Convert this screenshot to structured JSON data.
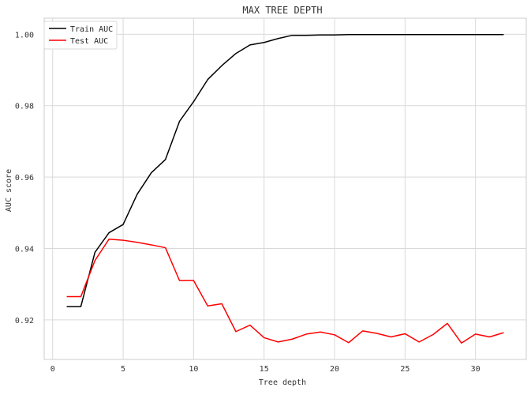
{
  "chart_data": {
    "type": "line",
    "title": "MAX TREE DEPTH",
    "xlabel": "Tree depth",
    "ylabel": "AUC score",
    "xlim": [
      -0.6,
      33.6
    ],
    "ylim": [
      0.9089,
      1.0045
    ],
    "x_ticks": [
      0,
      5,
      10,
      15,
      20,
      25,
      30
    ],
    "y_ticks": [
      0.92,
      0.94,
      0.96,
      0.98,
      1.0
    ],
    "y_tick_labels": [
      "0.92",
      "0.94",
      "0.96",
      "0.98",
      "1.00"
    ],
    "grid": true,
    "legend_position": "top-left",
    "x": [
      1,
      2,
      3,
      4,
      5,
      6,
      7,
      8,
      9,
      10,
      11,
      12,
      13,
      14,
      15,
      16,
      17,
      18,
      19,
      20,
      21,
      22,
      23,
      24,
      25,
      26,
      27,
      28,
      29,
      30,
      31,
      32
    ],
    "series": [
      {
        "name": "Train AUC",
        "color": "#000000",
        "values": [
          0.9237,
          0.9237,
          0.9389,
          0.9444,
          0.9467,
          0.9552,
          0.9612,
          0.9649,
          0.9756,
          0.9811,
          0.9873,
          0.9912,
          0.9946,
          0.997,
          0.9977,
          0.9988,
          0.9997,
          0.9997,
          0.9998,
          0.9998,
          0.9999,
          0.9999,
          0.9999,
          0.9999,
          0.9999,
          0.9999,
          0.9999,
          0.9999,
          0.9999,
          0.9999,
          0.9999,
          0.9999
        ]
      },
      {
        "name": "Test AUC",
        "color": "#ff0000",
        "values": [
          0.9265,
          0.9265,
          0.9366,
          0.9426,
          0.9423,
          0.9417,
          0.941,
          0.9402,
          0.931,
          0.931,
          0.9239,
          0.9245,
          0.9167,
          0.9185,
          0.915,
          0.9138,
          0.9146,
          0.916,
          0.9166,
          0.9158,
          0.9136,
          0.9169,
          0.9162,
          0.9152,
          0.9161,
          0.9138,
          0.9159,
          0.919,
          0.9135,
          0.916,
          0.9152,
          0.9164
        ]
      }
    ]
  }
}
